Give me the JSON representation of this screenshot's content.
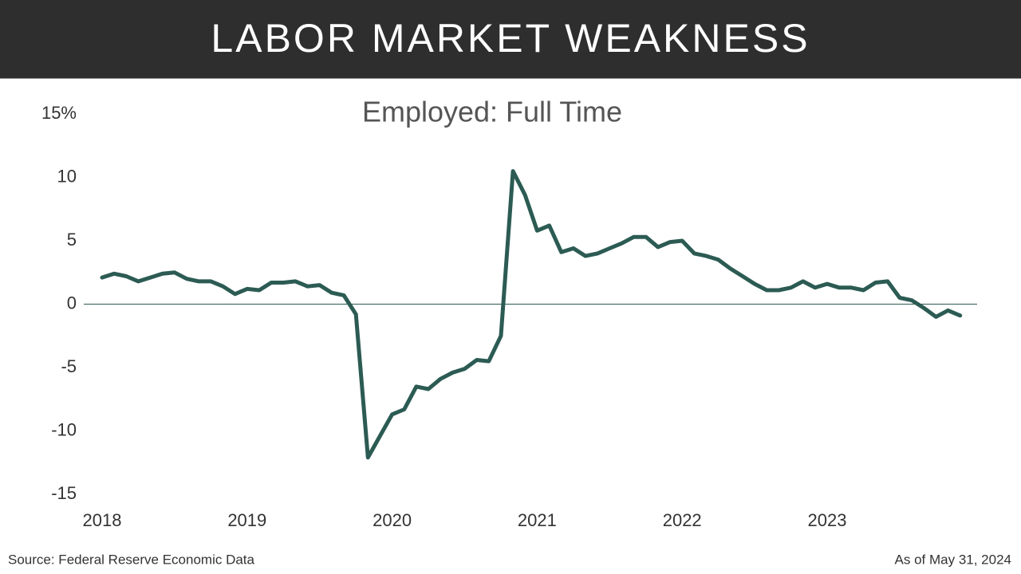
{
  "header": {
    "title": "LABOR MARKET WEAKNESS"
  },
  "chart_data": {
    "type": "line",
    "title": "Employed: Full Time",
    "categories": [
      "2018",
      null,
      null,
      null,
      null,
      null,
      null,
      null,
      null,
      null,
      null,
      null,
      "2019",
      null,
      null,
      null,
      null,
      null,
      null,
      null,
      null,
      null,
      null,
      null,
      "2020",
      null,
      null,
      null,
      null,
      null,
      null,
      null,
      null,
      null,
      null,
      null,
      "2021",
      null,
      null,
      null,
      null,
      null,
      null,
      null,
      null,
      null,
      null,
      null,
      "2022",
      null,
      null,
      null,
      null,
      null,
      null,
      null,
      null,
      null,
      null,
      null,
      "2023",
      null,
      null,
      null,
      null,
      null,
      null,
      null,
      null,
      null,
      null,
      null
    ],
    "values": [
      2.1,
      2.4,
      2.2,
      1.8,
      2.1,
      2.4,
      2.5,
      2.0,
      1.8,
      1.8,
      1.4,
      0.8,
      1.2,
      1.1,
      1.7,
      1.7,
      1.8,
      1.4,
      1.5,
      0.9,
      0.7,
      -0.8,
      -12.1,
      -10.4,
      -8.7,
      -8.3,
      -6.5,
      -6.7,
      -5.9,
      -5.4,
      -5.1,
      -4.4,
      -4.5,
      -2.5,
      10.5,
      8.6,
      5.8,
      6.2,
      4.1,
      4.4,
      3.8,
      4.0,
      4.4,
      4.8,
      5.3,
      5.3,
      4.5,
      4.9,
      5.0,
      4.0,
      3.8,
      3.5,
      2.8,
      2.2,
      1.6,
      1.1,
      1.1,
      1.3,
      1.8,
      1.3,
      1.6,
      1.3,
      1.3,
      1.1,
      1.7,
      1.8,
      0.5,
      0.3,
      -0.3,
      -1.0,
      -0.5,
      -0.9
    ],
    "color": "#2b5b53",
    "ylim": [
      -15,
      15
    ],
    "yticks": [
      -15,
      -10,
      -5,
      0,
      5,
      10,
      {
        "value": 15,
        "label": "15%"
      }
    ],
    "zero_line": true
  },
  "footer": {
    "source": "Source: Federal Reserve Economic Data",
    "date": "As of May 31, 2024"
  }
}
